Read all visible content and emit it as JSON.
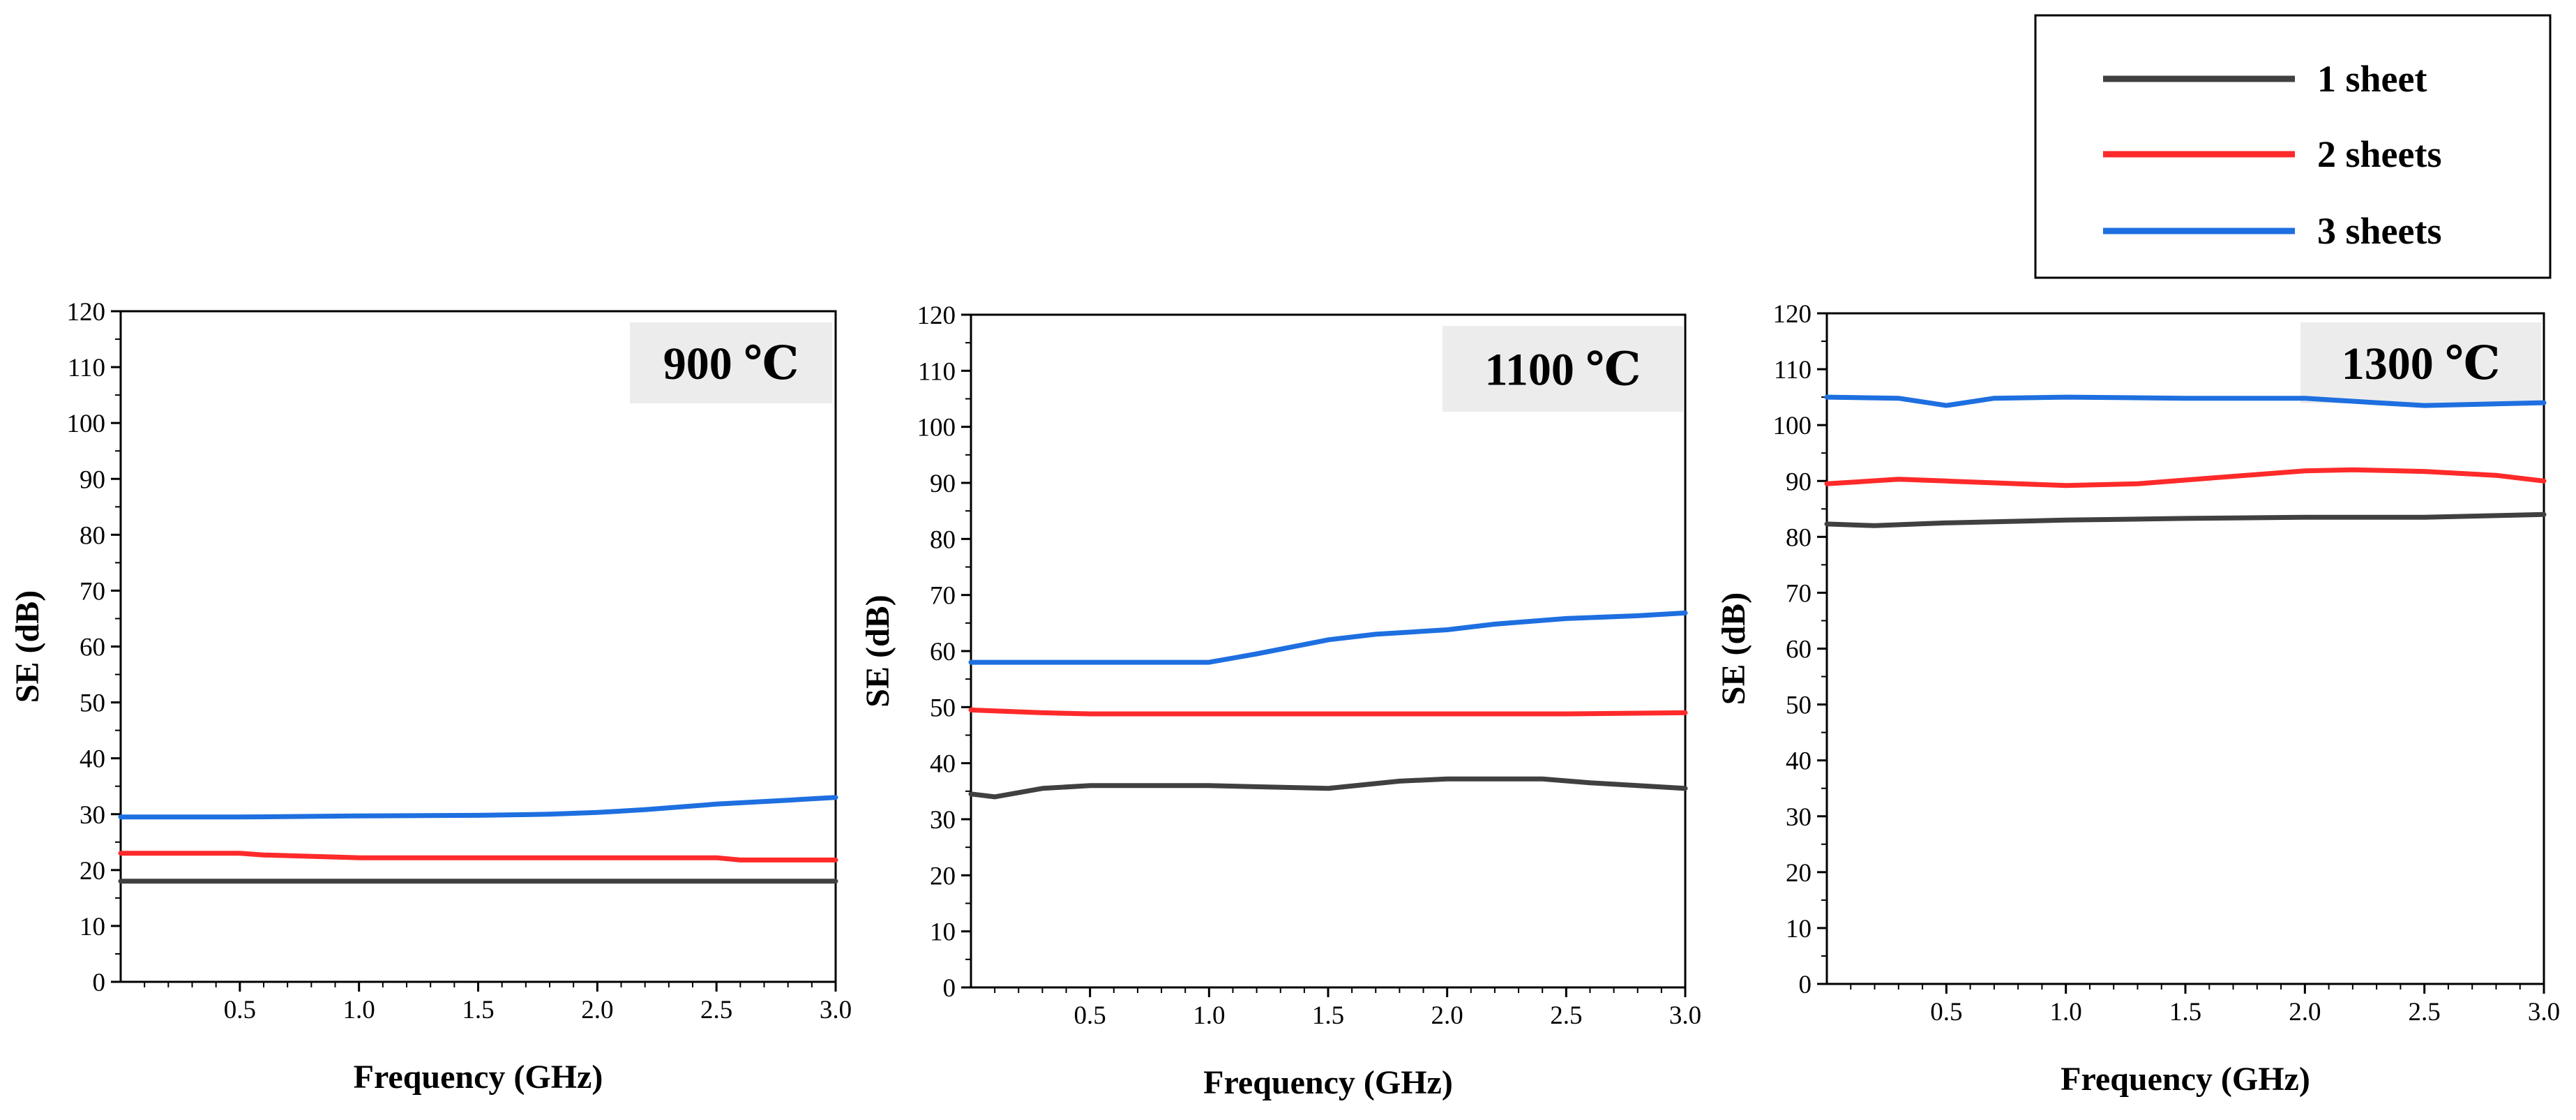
{
  "chart_data": [
    {
      "type": "line",
      "title": "900 ℃",
      "xlabel": "Frequency (GHz)",
      "ylabel": "SE (dB)",
      "xlim": [
        0.0,
        3.0
      ],
      "ylim": [
        0,
        120
      ],
      "xticks": [
        "0.5",
        "1.0",
        "1.5",
        "2.0",
        "2.5",
        "3.0"
      ],
      "yticks": [
        "0",
        "10",
        "20",
        "30",
        "40",
        "50",
        "60",
        "70",
        "80",
        "90",
        "100",
        "110",
        "120"
      ],
      "series": [
        {
          "name": "1 sheet",
          "x": [
            0.0,
            0.5,
            1.0,
            1.5,
            2.0,
            2.5,
            3.0
          ],
          "y": [
            18,
            18,
            18,
            18,
            18,
            18,
            18
          ]
        },
        {
          "name": "2 sheets",
          "x": [
            0.0,
            0.5,
            0.6,
            1.0,
            1.5,
            2.0,
            2.5,
            2.6,
            3.0
          ],
          "y": [
            23,
            23,
            22.7,
            22.2,
            22.2,
            22.2,
            22.2,
            21.8,
            21.8
          ]
        },
        {
          "name": "3 sheets",
          "x": [
            0.0,
            0.5,
            1.0,
            1.5,
            1.8,
            2.0,
            2.2,
            2.5,
            2.8,
            3.0
          ],
          "y": [
            29.5,
            29.5,
            29.7,
            29.8,
            30,
            30.3,
            30.8,
            31.8,
            32.5,
            33
          ]
        }
      ]
    },
    {
      "type": "line",
      "title": "1100 ℃",
      "xlabel": "Frequency (GHz)",
      "ylabel": "SE (dB)",
      "xlim": [
        0.0,
        3.0
      ],
      "ylim": [
        0,
        120
      ],
      "xticks": [
        "0.5",
        "1.0",
        "1.5",
        "2.0",
        "2.5",
        "3.0"
      ],
      "yticks": [
        "0",
        "10",
        "20",
        "30",
        "40",
        "50",
        "60",
        "70",
        "80",
        "90",
        "100",
        "110",
        "120"
      ],
      "series": [
        {
          "name": "1 sheet",
          "x": [
            0.0,
            0.1,
            0.3,
            0.5,
            1.0,
            1.5,
            1.8,
            2.0,
            2.4,
            2.6,
            2.8,
            3.0
          ],
          "y": [
            34.5,
            34,
            35.5,
            36,
            36,
            35.5,
            36.8,
            37.2,
            37.2,
            36.5,
            36,
            35.5
          ]
        },
        {
          "name": "2 sheets",
          "x": [
            0.0,
            0.3,
            0.5,
            1.0,
            1.5,
            2.0,
            2.5,
            3.0
          ],
          "y": [
            49.5,
            49,
            48.8,
            48.8,
            48.8,
            48.8,
            48.8,
            49
          ]
        },
        {
          "name": "3 sheets",
          "x": [
            0.0,
            0.5,
            1.0,
            1.2,
            1.5,
            1.7,
            2.0,
            2.2,
            2.5,
            2.8,
            3.0
          ],
          "y": [
            58,
            58,
            58,
            59.5,
            62,
            63,
            63.8,
            64.8,
            65.8,
            66.3,
            66.8
          ]
        }
      ]
    },
    {
      "type": "line",
      "title": "1300 ℃",
      "xlabel": "Frequency (GHz)",
      "ylabel": "SE (dB)",
      "xlim": [
        0.0,
        3.0
      ],
      "ylim": [
        0,
        120
      ],
      "xticks": [
        "0.5",
        "1.0",
        "1.5",
        "2.0",
        "2.5",
        "3.0"
      ],
      "yticks": [
        "0",
        "10",
        "20",
        "30",
        "40",
        "50",
        "60",
        "70",
        "80",
        "90",
        "100",
        "110",
        "120"
      ],
      "series": [
        {
          "name": "1 sheet",
          "x": [
            0.0,
            0.2,
            0.5,
            1.0,
            1.5,
            2.0,
            2.5,
            3.0
          ],
          "y": [
            82.3,
            82,
            82.5,
            83,
            83.3,
            83.5,
            83.5,
            84
          ]
        },
        {
          "name": "2 sheets",
          "x": [
            0.0,
            0.3,
            0.5,
            0.8,
            1.0,
            1.3,
            1.6,
            2.0,
            2.2,
            2.5,
            2.8,
            3.0
          ],
          "y": [
            89.5,
            90.3,
            90,
            89.5,
            89.2,
            89.5,
            90.5,
            91.8,
            92,
            91.7,
            91,
            90
          ]
        },
        {
          "name": "3 sheets",
          "x": [
            0.0,
            0.3,
            0.5,
            0.7,
            1.0,
            1.5,
            2.0,
            2.3,
            2.5,
            3.0
          ],
          "y": [
            105,
            104.8,
            103.5,
            104.8,
            105,
            104.8,
            104.8,
            104,
            103.5,
            104
          ]
        }
      ]
    }
  ],
  "legend": {
    "entries": [
      {
        "label": "1 sheet",
        "color": "#404040"
      },
      {
        "label": "2 sheets",
        "color": "#ff2a2a"
      },
      {
        "label": "3 sheets",
        "color": "#1e6fe0"
      }
    ]
  }
}
